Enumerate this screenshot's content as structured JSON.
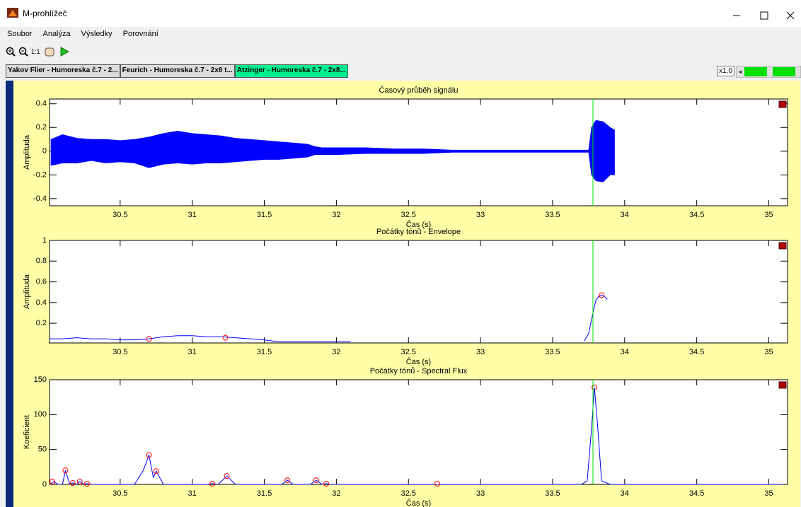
{
  "window": {
    "title": "M-prohlížeč"
  },
  "menu": [
    "Soubor",
    "Analýza",
    "Výsledky",
    "Porovnání"
  ],
  "toolbar": {
    "zoom_label": "1:1"
  },
  "tabs": [
    "Yakov Flier - Humoreska č.7 - 2...",
    "Feurich - Humoreska č.7 - 2x8 t...",
    "Atzinger - Humoreska č.7 - 2x8..."
  ],
  "speed": "x1.0",
  "chart_data": [
    {
      "type": "range",
      "title": "Časový průběh signálu",
      "xlabel": "Čas (s)",
      "ylabel": "Amplituda",
      "xlim": [
        30.01,
        35.13
      ],
      "ylim": [
        -0.46,
        0.44
      ],
      "xticks": [
        30.5,
        31,
        31.5,
        32,
        32.5,
        33,
        33.5,
        34,
        34.5,
        35
      ],
      "yticks": [
        -0.4,
        -0.2,
        0,
        0.2,
        0.4
      ],
      "cursor_x": 33.78,
      "cursor_color": "#00e000",
      "x": [
        30.02,
        30.1,
        30.2,
        30.3,
        30.4,
        30.5,
        30.6,
        30.7,
        30.8,
        30.9,
        31.0,
        31.1,
        31.2,
        31.3,
        31.4,
        31.5,
        31.6,
        31.7,
        31.8,
        31.85,
        31.9,
        32.0,
        32.2,
        32.4,
        32.6,
        32.8,
        33.0,
        33.2,
        33.4,
        33.6,
        33.75,
        33.77,
        33.8,
        33.85,
        33.9,
        33.93
      ],
      "series": [
        {
          "color": "#0000ff",
          "values": [
            0.1,
            0.14,
            0.11,
            0.1,
            0.1,
            0.09,
            0.1,
            0.12,
            0.15,
            0.17,
            0.15,
            0.14,
            0.13,
            0.11,
            0.1,
            0.09,
            0.08,
            0.07,
            0.06,
            0.04,
            0.03,
            0.03,
            0.03,
            0.02,
            0.02,
            0.01,
            0.01,
            0.01,
            0.01,
            0.01,
            0.01,
            0.2,
            0.26,
            0.25,
            0.2,
            0.18
          ]
        },
        {
          "color": "#0000ff",
          "values": [
            -0.12,
            -0.1,
            -0.1,
            -0.08,
            -0.1,
            -0.09,
            -0.1,
            -0.14,
            -0.11,
            -0.1,
            -0.11,
            -0.1,
            -0.1,
            -0.09,
            -0.08,
            -0.07,
            -0.07,
            -0.06,
            -0.05,
            -0.03,
            -0.03,
            -0.03,
            -0.02,
            -0.02,
            -0.02,
            -0.01,
            -0.01,
            -0.01,
            -0.01,
            -0.01,
            -0.01,
            -0.2,
            -0.25,
            -0.26,
            -0.2,
            -0.2
          ]
        }
      ]
    },
    {
      "type": "line",
      "title": "Počátky tónů - Envelope",
      "xlabel": "Čas (s)",
      "ylabel": "Amplituda",
      "xlim": [
        30.01,
        35.13
      ],
      "ylim": [
        0.01,
        1
      ],
      "xticks": [
        30.5,
        31,
        31.5,
        32,
        32.5,
        33,
        33.5,
        34,
        34.5,
        35
      ],
      "yticks": [
        0.2,
        0.4,
        0.6,
        0.8,
        1
      ],
      "cursor_x": 33.78,
      "cursor_color": "#00e000",
      "x": [
        30.01,
        30.1,
        30.2,
        30.3,
        30.4,
        30.5,
        30.6,
        30.7,
        30.8,
        30.9,
        31.0,
        31.1,
        31.2,
        31.3,
        31.4,
        31.5,
        31.6,
        31.8,
        32.0,
        32.1,
        32.5,
        33.72,
        33.75,
        33.78,
        33.8,
        33.82,
        33.84,
        33.86,
        33.88
      ],
      "series": [
        {
          "color": "#0000ff",
          "values": [
            0.05,
            0.05,
            0.06,
            0.05,
            0.05,
            0.04,
            0.04,
            0.05,
            0.07,
            0.08,
            0.08,
            0.07,
            0.07,
            0.06,
            0.05,
            0.04,
            0.02,
            0.02,
            0.02,
            0.02,
            null,
            0.03,
            0.1,
            0.3,
            0.42,
            0.46,
            0.47,
            0.46,
            0.43
          ]
        }
      ],
      "markers": {
        "color": "#ff0000",
        "x": [
          30.7,
          31.23,
          33.84
        ],
        "values": [
          0.05,
          0.06,
          0.47
        ]
      }
    },
    {
      "type": "line",
      "title": "Počátky tónů - Spectral Flux",
      "xlabel": "Čas (s)",
      "ylabel": "Koeficient",
      "xlim": [
        30.01,
        35.13
      ],
      "ylim": [
        0,
        150
      ],
      "xticks": [
        30.5,
        31,
        31.5,
        32,
        32.5,
        33,
        33.5,
        34,
        34.5,
        35
      ],
      "yticks": [
        0,
        50,
        100,
        150
      ],
      "cursor_x": 33.78,
      "cursor_color": "#00e000",
      "x": [
        30.01,
        30.04,
        30.07,
        30.1,
        30.12,
        30.15,
        30.17,
        30.2,
        30.22,
        30.25,
        30.27,
        30.3,
        30.6,
        30.66,
        30.7,
        30.73,
        30.75,
        30.8,
        31.1,
        31.14,
        31.18,
        31.24,
        31.3,
        31.62,
        31.66,
        31.7,
        31.82,
        31.86,
        31.9,
        31.93,
        31.96,
        33.7,
        33.74,
        33.77,
        33.79,
        33.81,
        33.84,
        33.9,
        35.1
      ],
      "series": [
        {
          "color": "#0000ff",
          "values": [
            0,
            4,
            0,
            0,
            20,
            0,
            2,
            0,
            4,
            0,
            1,
            0,
            0,
            20,
            42,
            10,
            19,
            0,
            0,
            1,
            0,
            12,
            0,
            0,
            6,
            0,
            0,
            6,
            0,
            1,
            0,
            0,
            5,
            80,
            139,
            90,
            5,
            0,
            0
          ]
        }
      ],
      "markers": {
        "color": "#ff0000",
        "x": [
          30.03,
          30.12,
          30.17,
          30.22,
          30.27,
          30.7,
          30.75,
          31.14,
          31.24,
          31.66,
          31.86,
          31.93,
          32.7,
          33.79
        ],
        "values": [
          4,
          20,
          2,
          4,
          1,
          42,
          19,
          1,
          12,
          6,
          6,
          1,
          1,
          139
        ]
      }
    }
  ]
}
